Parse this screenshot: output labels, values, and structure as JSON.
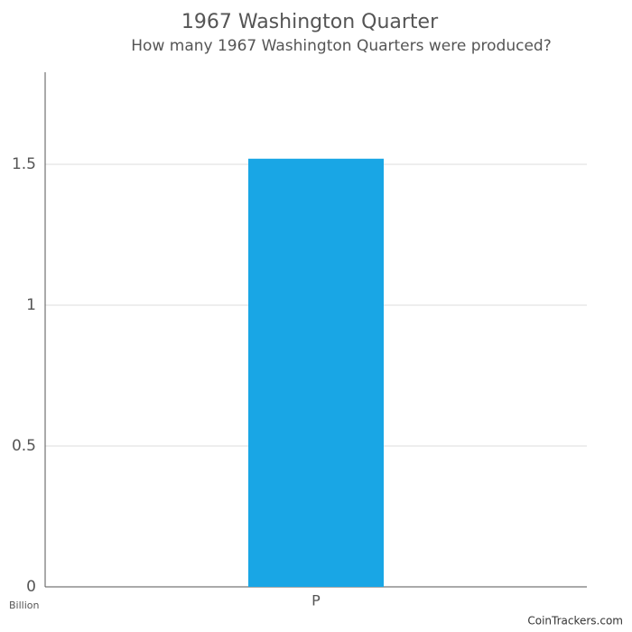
{
  "chart_data": {
    "type": "bar",
    "title": "1967 Washington Quarter",
    "subtitle": "How many 1967 Washington Quarters were produced?",
    "y_axis_label": "Billion",
    "source": "CoinTrackers.com",
    "categories": [
      "P"
    ],
    "values": [
      1.52
    ],
    "color": "#19a6e5",
    "ylim": [
      0,
      1.827
    ],
    "yticks": [
      0,
      0.5,
      1,
      1.5
    ],
    "grid": true
  }
}
